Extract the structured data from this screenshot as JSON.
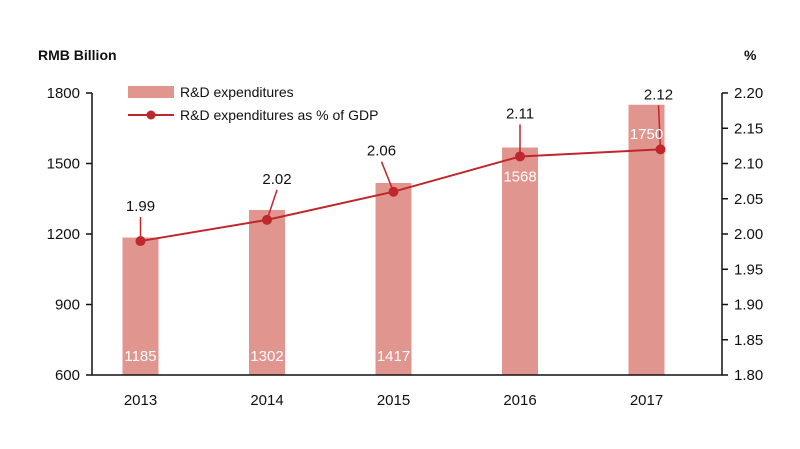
{
  "colors": {
    "bar": "#e0958f",
    "line": "#c0272d",
    "axis": "#111111"
  },
  "chart_data": {
    "type": "bar+line",
    "categories": [
      "2013",
      "2014",
      "2015",
      "2016",
      "2017"
    ],
    "series": [
      {
        "name": "R&D expenditures",
        "type": "bar",
        "axis": "left",
        "values": [
          1185,
          1302,
          1417,
          1568,
          1750
        ],
        "labels": [
          "1185",
          "1302",
          "1417",
          "1568",
          "1750"
        ]
      },
      {
        "name": "R&D expenditures as % of GDP",
        "type": "line",
        "axis": "right",
        "values": [
          1.99,
          2.02,
          2.06,
          2.11,
          2.12
        ],
        "labels": [
          "1.99",
          "2.02",
          "2.06",
          "2.11",
          "2.12"
        ]
      }
    ],
    "y_left": {
      "label": "RMB Billion",
      "range": [
        600,
        1800
      ],
      "ticks": [
        "600",
        "900",
        "1200",
        "1500",
        "1800"
      ]
    },
    "y_right": {
      "label": "%",
      "range": [
        1.8,
        2.2
      ],
      "ticks": [
        "1.80",
        "1.85",
        "1.90",
        "1.95",
        "2.00",
        "2.05",
        "2.10",
        "2.15",
        "2.20"
      ]
    },
    "legend": {
      "position": "top-left",
      "items": [
        "R&D expenditures",
        "R&D expenditures as % of GDP"
      ]
    }
  }
}
